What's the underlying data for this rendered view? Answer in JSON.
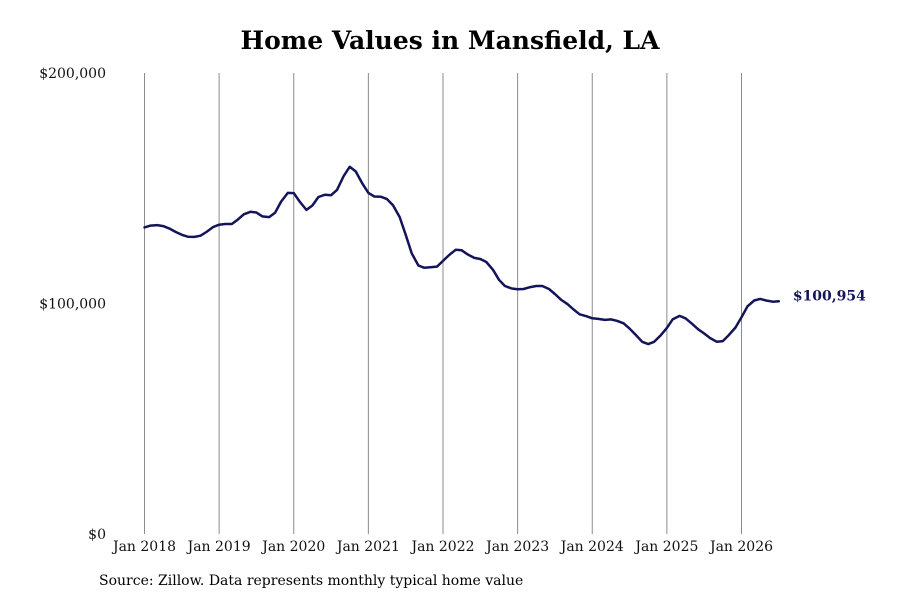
{
  "chart_data": {
    "type": "line",
    "title": "Home Values in Mansfield, LA",
    "xlabel": "",
    "ylabel": "",
    "ylim": [
      0,
      200000
    ],
    "y_ticks": [
      {
        "value": 0,
        "label": "$0"
      },
      {
        "value": 100000,
        "label": "$100,000"
      },
      {
        "value": 200000,
        "label": "$200,000"
      }
    ],
    "x_ticks": [
      {
        "value": 2018,
        "label": "Jan 2018"
      },
      {
        "value": 2019,
        "label": "Jan 2019"
      },
      {
        "value": 2020,
        "label": "Jan 2020"
      },
      {
        "value": 2021,
        "label": "Jan 2021"
      },
      {
        "value": 2022,
        "label": "Jan 2022"
      },
      {
        "value": 2023,
        "label": "Jan 2023"
      },
      {
        "value": 2024,
        "label": "Jan 2024"
      },
      {
        "value": 2025,
        "label": "Jan 2025"
      },
      {
        "value": 2026,
        "label": "Jan 2026"
      }
    ],
    "xlim": [
      2018,
      2026.5
    ],
    "grid": "vertical lines at each January",
    "series": [
      {
        "color": "#14145a",
        "end_label": "$100,954",
        "x": [
          2018.0,
          2018.08,
          2018.17,
          2018.25,
          2018.33,
          2018.42,
          2018.5,
          2018.58,
          2018.67,
          2018.75,
          2018.83,
          2018.92,
          2019.0,
          2019.08,
          2019.17,
          2019.25,
          2019.33,
          2019.42,
          2019.5,
          2019.58,
          2019.67,
          2019.75,
          2019.83,
          2019.92,
          2020.0,
          2020.08,
          2020.17,
          2020.25,
          2020.33,
          2020.42,
          2020.5,
          2020.58,
          2020.67,
          2020.75,
          2020.83,
          2020.92,
          2021.0,
          2021.08,
          2021.17,
          2021.25,
          2021.33,
          2021.42,
          2021.5,
          2021.58,
          2021.67,
          2021.75,
          2021.83,
          2021.92,
          2022.0,
          2022.08,
          2022.17,
          2022.25,
          2022.33,
          2022.42,
          2022.5,
          2022.58,
          2022.67,
          2022.75,
          2022.83,
          2022.92,
          2023.0,
          2023.08,
          2023.17,
          2023.25,
          2023.33,
          2023.42,
          2023.5,
          2023.58,
          2023.67,
          2023.75,
          2023.83,
          2023.92,
          2024.0,
          2024.08,
          2024.17,
          2024.25,
          2024.33,
          2024.42,
          2024.5,
          2024.58,
          2024.67,
          2024.75,
          2024.83,
          2024.92,
          2025.0,
          2025.08,
          2025.17,
          2025.25,
          2025.33,
          2025.42,
          2025.5,
          2025.58,
          2025.67,
          2025.75,
          2025.83,
          2025.92,
          2026.0,
          2026.08,
          2026.17,
          2026.25,
          2026.33,
          2026.42,
          2026.5
        ],
        "values": [
          133000,
          133800,
          134000,
          133600,
          132600,
          131000,
          129800,
          129000,
          128900,
          129400,
          131000,
          133200,
          134200,
          134500,
          134500,
          136400,
          138700,
          139800,
          139500,
          137800,
          137500,
          139400,
          144200,
          148000,
          147900,
          144200,
          140600,
          142500,
          146200,
          147200,
          147000,
          149300,
          155300,
          159300,
          157300,
          152000,
          148000,
          146400,
          146300,
          145300,
          142600,
          137500,
          129800,
          121800,
          116500,
          115500,
          115700,
          116000,
          118500,
          121000,
          123300,
          123100,
          121300,
          119800,
          119300,
          118000,
          114600,
          110300,
          107600,
          106500,
          106200,
          106300,
          107100,
          107600,
          107600,
          106300,
          104100,
          101700,
          99700,
          97400,
          95300,
          94500,
          93600,
          93300,
          92900,
          93100,
          92500,
          91400,
          89100,
          86500,
          83400,
          82400,
          83400,
          86300,
          89400,
          93200,
          94600,
          93600,
          91400,
          88800,
          87000,
          85000,
          83400,
          83700,
          86300,
          89600,
          94000,
          98800,
          101300,
          102000,
          101300,
          100800,
          100954
        ]
      }
    ]
  },
  "footer": {
    "source": "Source: Zillow. Data represents monthly typical home value"
  }
}
